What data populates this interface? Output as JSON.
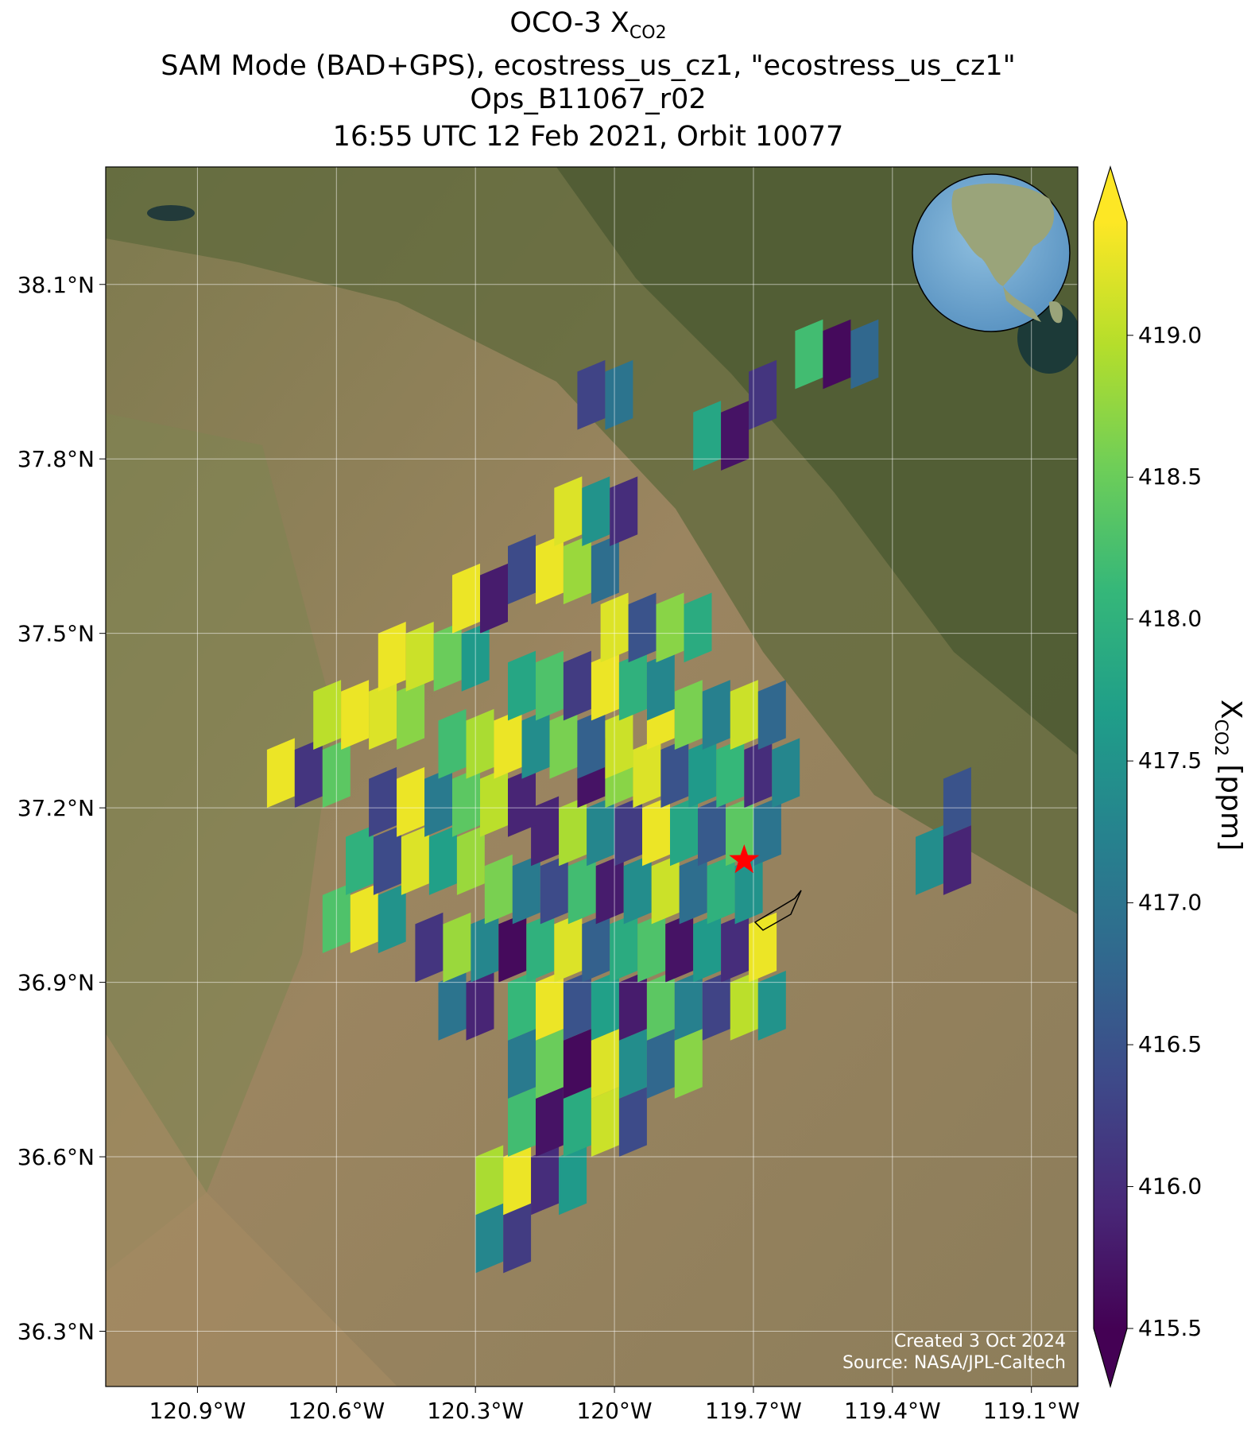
{
  "chart_data": {
    "type": "map",
    "title": [
      "OCO-3 X",
      "SAM Mode (BAD+GPS), ecostress_us_cz1, \"ecostress_us_cz1\"",
      "Ops_B11067_r02",
      "16:55 UTC 12 Feb 2021, Orbit 10077"
    ],
    "title_subscript": "CO2",
    "xlim": [
      -121.098,
      -119.0
    ],
    "ylim": [
      36.205,
      38.302
    ],
    "xticks": [
      {
        "value": -120.9,
        "label": "120.9°W"
      },
      {
        "value": -120.6,
        "label": "120.6°W"
      },
      {
        "value": -120.3,
        "label": "120.3°W"
      },
      {
        "value": -120.0,
        "label": "120°W"
      },
      {
        "value": -119.7,
        "label": "119.7°W"
      },
      {
        "value": -119.4,
        "label": "119.4°W"
      },
      {
        "value": -119.1,
        "label": "119.1°W"
      }
    ],
    "yticks": [
      {
        "value": 36.3,
        "label": "36.3°N"
      },
      {
        "value": 36.6,
        "label": "36.6°N"
      },
      {
        "value": 36.9,
        "label": "36.9°N"
      },
      {
        "value": 37.2,
        "label": "37.2°N"
      },
      {
        "value": 37.5,
        "label": "37.5°N"
      },
      {
        "value": 37.8,
        "label": "37.8°N"
      },
      {
        "value": 38.1,
        "label": "38.1°N"
      }
    ],
    "grid": true,
    "colormap": "viridis",
    "clim": [
      415.5,
      419.4
    ],
    "colorbar_ticks": [
      415.5,
      {
        "value": 416,
        "label": "416.0"
      },
      416.5,
      {
        "value": 417,
        "label": "417.0"
      },
      417.5,
      {
        "value": 418,
        "label": "418.0"
      },
      418.5,
      {
        "value": 419,
        "label": "419.0"
      }
    ],
    "colorbar_label": [
      "X",
      "CO2",
      "[ppm]"
    ],
    "target": {
      "lon": -119.72,
      "lat": 37.11,
      "color": "#ff0000"
    },
    "annotations": [
      "Created 3 Oct 2024",
      "Source: NASA/JPL-Caltech"
    ],
    "soundings": {
      "lon": [
        -120.27,
        -120.21,
        -120.27,
        -120.21,
        -120.15,
        -120.09,
        -120.2,
        -120.14,
        -120.08,
        -120.02,
        -119.96,
        -120.2,
        -120.14,
        -120.08,
        -120.02,
        -119.96,
        -119.9,
        -119.84,
        -120.35,
        -120.29,
        -120.2,
        -120.14,
        -120.08,
        -120.02,
        -119.96,
        -119.9,
        -119.84,
        -119.78,
        -119.72,
        -119.66,
        -120.4,
        -120.34,
        -120.28,
        -120.22,
        -120.16,
        -120.1,
        -120.04,
        -119.98,
        -119.92,
        -119.86,
        -119.8,
        -119.74,
        -119.68,
        -120.25,
        -120.19,
        -120.13,
        -120.07,
        -120.01,
        -119.95,
        -119.89,
        -119.83,
        -119.77,
        -119.71,
        -120.15,
        -120.09,
        -120.03,
        -119.97,
        -119.91,
        -119.85,
        -119.79,
        -119.73,
        -119.67,
        -120.05,
        -119.99,
        -119.93,
        -119.87,
        -119.81,
        -119.75,
        -119.69,
        -119.63,
        -119.9,
        -119.84,
        -119.78,
        -119.72,
        -119.66,
        -120.6,
        -120.54,
        -120.48,
        -120.55,
        -120.49,
        -120.43,
        -120.37,
        -120.31,
        -120.5,
        -120.44,
        -120.38,
        -120.32,
        -120.26,
        -120.2,
        -120.35,
        -120.29,
        -120.23,
        -120.17,
        -120.11,
        -120.05,
        -119.99,
        -120.2,
        -120.14,
        -120.08,
        -120.02,
        -119.96,
        -119.9,
        -120.0,
        -119.94,
        -119.88,
        -119.82,
        -120.72,
        -120.66,
        -120.6,
        -120.62,
        -120.56,
        -120.5,
        -120.44,
        -120.48,
        -120.42,
        -120.36,
        -120.3,
        -120.32,
        -120.26,
        -120.2,
        -120.14,
        -120.08,
        -120.02,
        -120.1,
        -120.04,
        -119.98,
        -119.8,
        -119.74,
        -120.05,
        -119.99,
        -119.68,
        -119.58,
        -119.52,
        -119.46,
        -119.32,
        -119.26,
        -119.26
      ],
      "lat": [
        36.45,
        36.45,
        36.55,
        36.55,
        36.55,
        36.55,
        36.65,
        36.65,
        36.65,
        36.65,
        36.65,
        36.75,
        36.75,
        36.75,
        36.75,
        36.75,
        36.75,
        36.75,
        36.85,
        36.85,
        36.85,
        36.85,
        36.85,
        36.85,
        36.85,
        36.85,
        36.85,
        36.85,
        36.85,
        36.85,
        36.95,
        36.95,
        36.95,
        36.95,
        36.95,
        36.95,
        36.95,
        36.95,
        36.95,
        36.95,
        36.95,
        36.95,
        36.95,
        37.05,
        37.05,
        37.05,
        37.05,
        37.05,
        37.05,
        37.05,
        37.05,
        37.05,
        37.05,
        37.15,
        37.15,
        37.15,
        37.15,
        37.15,
        37.15,
        37.15,
        37.15,
        37.15,
        37.25,
        37.25,
        37.25,
        37.25,
        37.25,
        37.25,
        37.25,
        37.25,
        37.35,
        37.35,
        37.35,
        37.35,
        37.35,
        37.0,
        37.0,
        37.0,
        37.1,
        37.1,
        37.1,
        37.1,
        37.1,
        37.2,
        37.2,
        37.2,
        37.2,
        37.2,
        37.2,
        37.3,
        37.3,
        37.3,
        37.3,
        37.3,
        37.3,
        37.3,
        37.4,
        37.4,
        37.4,
        37.4,
        37.4,
        37.4,
        37.5,
        37.5,
        37.5,
        37.5,
        37.25,
        37.25,
        37.25,
        37.35,
        37.35,
        37.35,
        37.35,
        37.45,
        37.45,
        37.45,
        37.45,
        37.55,
        37.55,
        37.6,
        37.6,
        37.6,
        37.6,
        37.7,
        37.7,
        37.7,
        37.83,
        37.83,
        37.9,
        37.9,
        37.9,
        37.97,
        37.97,
        37.97,
        37.1,
        37.1,
        37.2
      ],
      "xco2": [
        417.3,
        416.2,
        418.9,
        419.3,
        416.0,
        417.6,
        418.2,
        415.7,
        417.9,
        419.1,
        416.4,
        417.1,
        418.5,
        415.6,
        419.2,
        417.4,
        416.8,
        418.7,
        417.0,
        415.9,
        418.1,
        419.3,
        416.5,
        417.7,
        415.8,
        418.4,
        417.2,
        416.3,
        419.0,
        417.5,
        416.1,
        418.8,
        417.3,
        415.6,
        418.0,
        419.2,
        416.7,
        417.9,
        418.3,
        415.7,
        417.6,
        416.0,
        419.3,
        418.6,
        417.1,
        416.4,
        418.2,
        415.8,
        417.4,
        419.1,
        416.9,
        418.0,
        417.5,
        415.9,
        418.9,
        417.3,
        416.2,
        419.3,
        417.8,
        416.6,
        418.4,
        417.0,
        415.7,
        418.7,
        419.2,
        416.5,
        417.6,
        418.1,
        416.0,
        417.3,
        419.3,
        418.6,
        417.2,
        419.1,
        416.8,
        418.3,
        419.3,
        417.5,
        418.0,
        416.4,
        419.2,
        417.7,
        418.8,
        416.3,
        419.3,
        417.1,
        418.4,
        419.0,
        415.9,
        418.2,
        418.9,
        419.3,
        417.4,
        418.6,
        416.7,
        419.1,
        417.8,
        418.3,
        416.2,
        419.3,
        418.0,
        417.3,
        419.2,
        416.5,
        418.7,
        417.9,
        419.3,
        416.1,
        418.4,
        419.0,
        419.3,
        419.2,
        418.7,
        419.3,
        419.1,
        418.5,
        417.6,
        419.3,
        415.8,
        416.4,
        419.3,
        418.8,
        416.9,
        419.2,
        417.5,
        416.0,
        417.8,
        415.7,
        416.3,
        417.0,
        416.1,
        418.2,
        415.6,
        416.8,
        417.4,
        415.9,
        416.5
      ]
    }
  }
}
